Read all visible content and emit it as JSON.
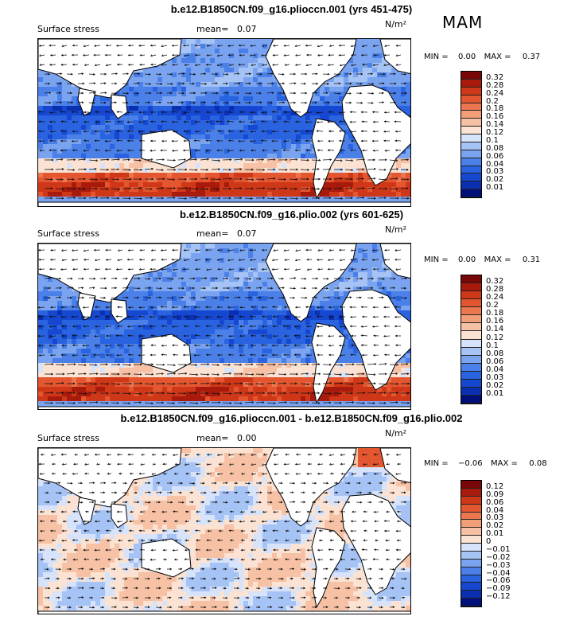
{
  "season": "MAM",
  "colors": {
    "p1": [
      "#00107a",
      "#0a2fb0",
      "#1547d0",
      "#2a63e0",
      "#4a80e8",
      "#7aa3f0",
      "#a6c3f5",
      "#d6e3fa",
      "#fbe2d2",
      "#f6c1a4",
      "#f29e78",
      "#ec7650",
      "#e45630",
      "#cf3719",
      "#a81a0c",
      "#780808"
    ],
    "p3": [
      "#00107a",
      "#0a2fb0",
      "#1547d0",
      "#2a63e0",
      "#4a80e8",
      "#7aa3f0",
      "#a6c3f5",
      "#d6e3fa",
      "#fbe2d2",
      "#f6c1a4",
      "#f29e78",
      "#ec7650",
      "#e45630",
      "#cf3719",
      "#a81a0c",
      "#780808"
    ]
  },
  "panels": [
    {
      "title": "b.e12.B1850CN.f09_g16.plioccn.001 (yrs 451-475)",
      "field": "Surface stress",
      "mean_label": "mean=",
      "mean": "0.07",
      "units": "N/m²",
      "min_label": "MIN =",
      "min": "0.00",
      "max_label": "MAX =",
      "max": "0.37",
      "ticks": [
        "0.32",
        "0.28",
        "0.24",
        "0.2",
        "0.18",
        "0.16",
        "0.14",
        "0.12",
        "0.1",
        "0.08",
        "0.06",
        "0.04",
        "0.03",
        "0.02",
        "0.01"
      ]
    },
    {
      "title": "b.e12.B1850CN.f09_g16.plio.002 (yrs 601-625)",
      "field": "Surface stress",
      "mean_label": "mean=",
      "mean": "0.07",
      "units": "N/m²",
      "min_label": "MIN =",
      "min": "0.00",
      "max_label": "MAX =",
      "max": "0.31",
      "ticks": [
        "0.32",
        "0.28",
        "0.24",
        "0.2",
        "0.18",
        "0.16",
        "0.14",
        "0.12",
        "0.1",
        "0.08",
        "0.06",
        "0.04",
        "0.03",
        "0.02",
        "0.01"
      ]
    },
    {
      "title": "b.e12.B1850CN.f09_g16.plioccn.001 - b.e12.B1850CN.f09_g16.plio.002",
      "field": "Surface stress",
      "mean_label": "mean=",
      "mean": "0.00",
      "units": "N/m²",
      "min_label": "MIN =",
      "min": "−0.06",
      "max_label": "MAX =",
      "max": "0.08",
      "ticks": [
        "0.12",
        "0.09",
        "0.06",
        "0.04",
        "0.03",
        "0.02",
        "0.01",
        "0",
        "−0.01",
        "−0.02",
        "−0.03",
        "−0.04",
        "−0.06",
        "−0.09",
        "−0.12"
      ]
    }
  ]
}
